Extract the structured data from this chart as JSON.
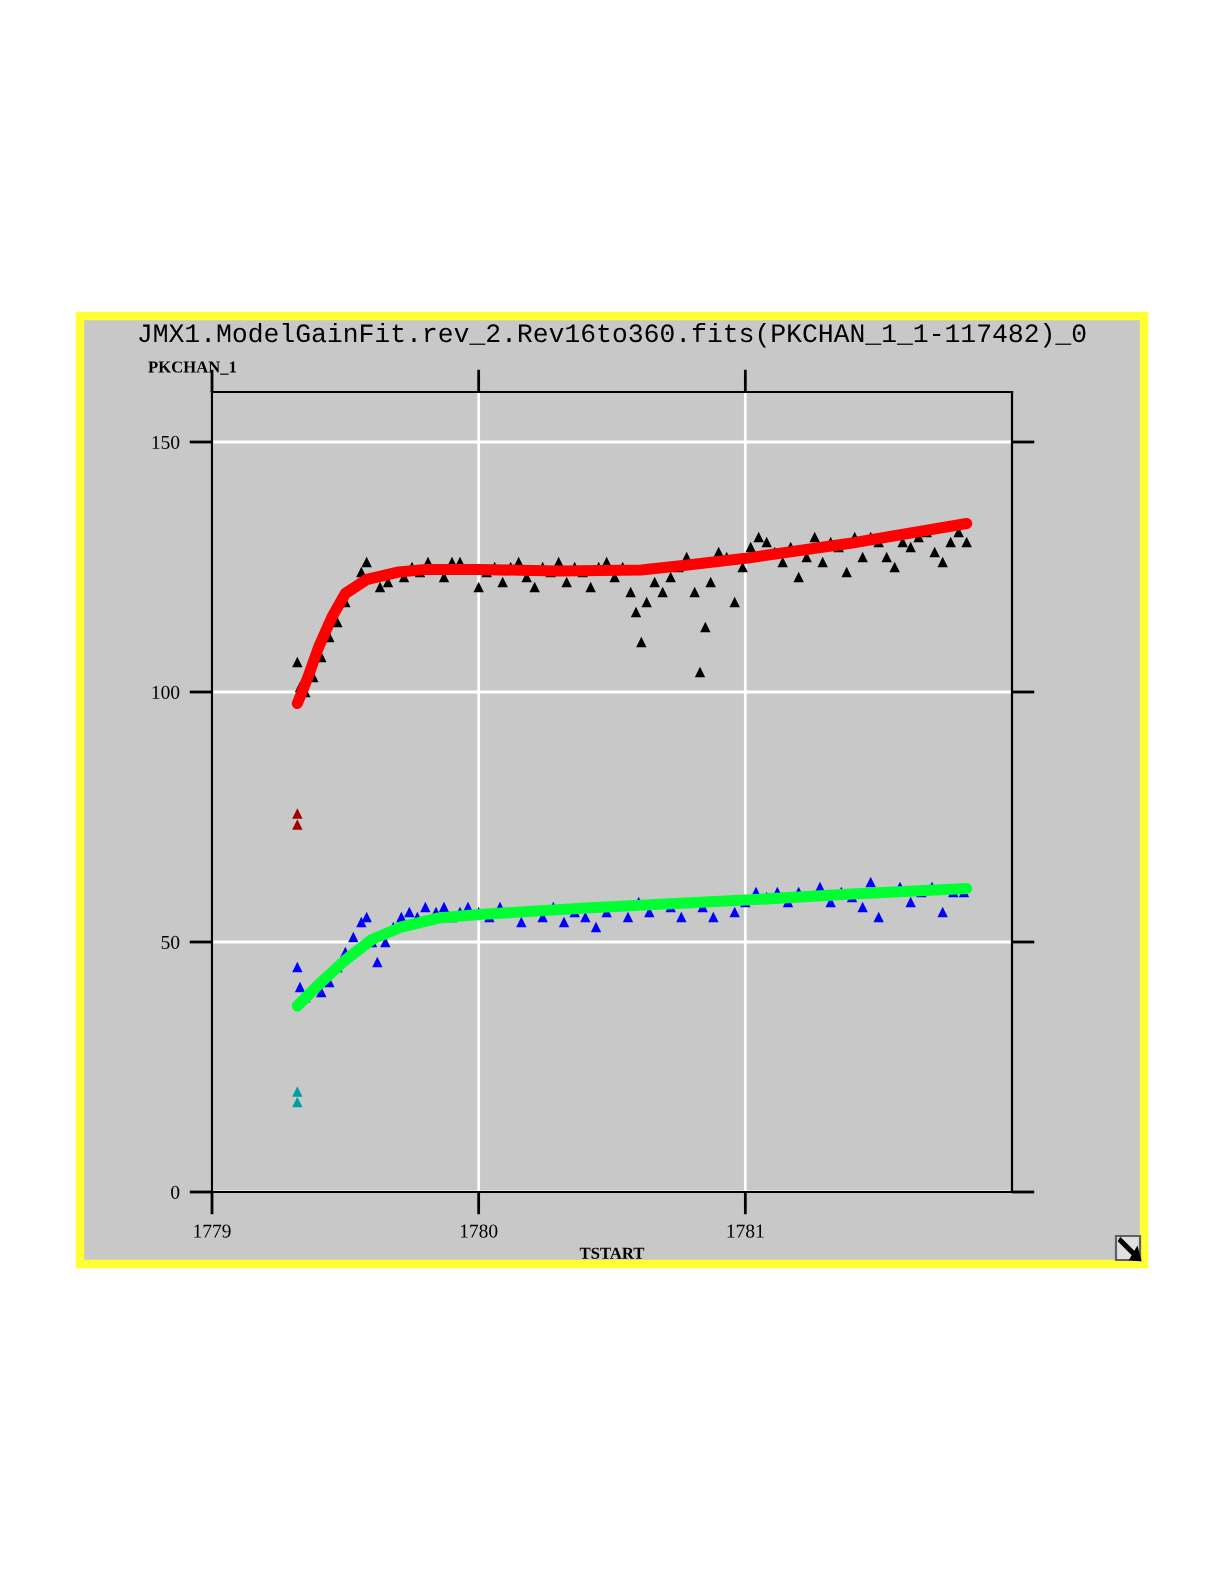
{
  "chart_data": {
    "type": "scatter",
    "title": "JMX1.ModelGainFit.rev_2.Rev16to360.fits(PKCHAN_1_1-117482)_0",
    "xlabel": "TSTART",
    "ylabel": "PKCHAN_1",
    "xlim": [
      1779,
      1782
    ],
    "xticks": [
      1779,
      1780,
      1781
    ],
    "ylim": [
      0,
      160
    ],
    "yticks": [
      0,
      50,
      100,
      150
    ],
    "grid": true,
    "legend": false,
    "series": [
      {
        "marker": "triangle",
        "color": "#000000",
        "x": [
          1779.32,
          1779.33,
          1779.35,
          1779.38,
          1779.41,
          1779.44,
          1779.47,
          1779.5,
          1779.56,
          1779.58,
          1779.63,
          1779.66,
          1779.72,
          1779.75,
          1779.78,
          1779.81,
          1779.87,
          1779.9,
          1779.93,
          1780.0,
          1780.03,
          1780.06,
          1780.09,
          1780.12,
          1780.15,
          1780.18,
          1780.21,
          1780.24,
          1780.27,
          1780.3,
          1780.33,
          1780.36,
          1780.39,
          1780.42,
          1780.45,
          1780.48,
          1780.51,
          1780.54,
          1780.57,
          1780.59,
          1780.61,
          1780.63,
          1780.66,
          1780.69,
          1780.72,
          1780.75,
          1780.78,
          1780.81,
          1780.83,
          1780.85,
          1780.87,
          1780.9,
          1780.93,
          1780.96,
          1780.99,
          1781.02,
          1781.05,
          1781.08,
          1781.11,
          1781.14,
          1781.17,
          1781.2,
          1781.23,
          1781.26,
          1781.29,
          1781.32,
          1781.35,
          1781.38,
          1781.41,
          1781.44,
          1781.47,
          1781.5,
          1781.53,
          1781.56,
          1781.59,
          1781.62,
          1781.65,
          1781.68,
          1781.71,
          1781.74,
          1781.77,
          1781.8,
          1781.83
        ],
        "values": [
          106,
          101,
          100,
          103,
          107,
          111,
          114,
          118,
          124,
          126,
          121,
          122,
          123,
          125,
          124,
          126,
          123,
          126,
          126,
          121,
          124,
          125,
          122,
          125,
          126,
          123,
          121,
          125,
          124,
          126,
          122,
          125,
          124,
          121,
          125,
          126,
          123,
          125,
          120,
          116,
          110,
          118,
          122,
          120,
          123,
          125,
          127,
          120,
          104,
          113,
          122,
          128,
          127,
          118,
          125,
          129,
          131,
          130,
          128,
          126,
          129,
          123,
          127,
          131,
          126,
          130,
          129,
          124,
          131,
          127,
          131,
          130,
          127,
          125,
          130,
          129,
          131,
          132,
          128,
          126,
          130,
          132,
          130
        ]
      },
      {
        "type": "line",
        "marker": "none",
        "color": "#ff0000",
        "x": [
          1779.32,
          1779.36,
          1779.4,
          1779.45,
          1779.5,
          1779.58,
          1779.7,
          1779.8,
          1780.0,
          1780.3,
          1780.61,
          1780.8,
          1781.01,
          1781.4,
          1781.83
        ],
        "values": [
          97.7,
          103,
          109,
          115,
          119.7,
          122.5,
          124,
          124.5,
          124.5,
          124.2,
          124.4,
          125.5,
          126.8,
          129.8,
          133.7
        ]
      },
      {
        "marker": "triangle",
        "color": "#0000ff",
        "x": [
          1779.32,
          1779.33,
          1779.35,
          1779.41,
          1779.44,
          1779.47,
          1779.5,
          1779.53,
          1779.56,
          1779.58,
          1779.6,
          1779.62,
          1779.65,
          1779.68,
          1779.71,
          1779.74,
          1779.77,
          1779.8,
          1779.84,
          1779.87,
          1779.9,
          1779.93,
          1779.96,
          1780.0,
          1780.04,
          1780.08,
          1780.16,
          1780.24,
          1780.28,
          1780.32,
          1780.36,
          1780.4,
          1780.44,
          1780.48,
          1780.56,
          1780.6,
          1780.64,
          1780.72,
          1780.76,
          1780.84,
          1780.88,
          1780.96,
          1781.0,
          1781.04,
          1781.08,
          1781.12,
          1781.16,
          1781.2,
          1781.28,
          1781.32,
          1781.36,
          1781.4,
          1781.44,
          1781.47,
          1781.5,
          1781.58,
          1781.62,
          1781.66,
          1781.7,
          1781.74,
          1781.78,
          1781.82
        ],
        "values": [
          45,
          41,
          39,
          40,
          42,
          45,
          48,
          51,
          54,
          55,
          50,
          46,
          50,
          53,
          55,
          56,
          55,
          57,
          56,
          57,
          55,
          56,
          57,
          56,
          55,
          57,
          54,
          55,
          57,
          54,
          56,
          55,
          53,
          56,
          55,
          58,
          56,
          57,
          55,
          57,
          55,
          56,
          58,
          60,
          59,
          60,
          58,
          60,
          61,
          58,
          60,
          59,
          57,
          62,
          55,
          61,
          58,
          60,
          61,
          56,
          60,
          60
        ]
      },
      {
        "type": "line",
        "marker": "none",
        "color": "#00ff33",
        "x": [
          1779.32,
          1779.4,
          1779.5,
          1779.6,
          1779.71,
          1779.85,
          1780.0,
          1780.4,
          1781.0,
          1781.4,
          1781.83
        ],
        "values": [
          37.2,
          41.5,
          46.4,
          50.5,
          53,
          54.8,
          55.5,
          56.8,
          58.4,
          59.6,
          60.7
        ]
      },
      {
        "marker": "triangle",
        "color": "#a00000",
        "x": [
          1779.32,
          1779.32
        ],
        "values": [
          75.7,
          73.5
        ]
      },
      {
        "marker": "triangle",
        "color": "#00a0a0",
        "x": [
          1779.32,
          1779.32
        ],
        "values": [
          20.1,
          18
        ]
      }
    ]
  }
}
